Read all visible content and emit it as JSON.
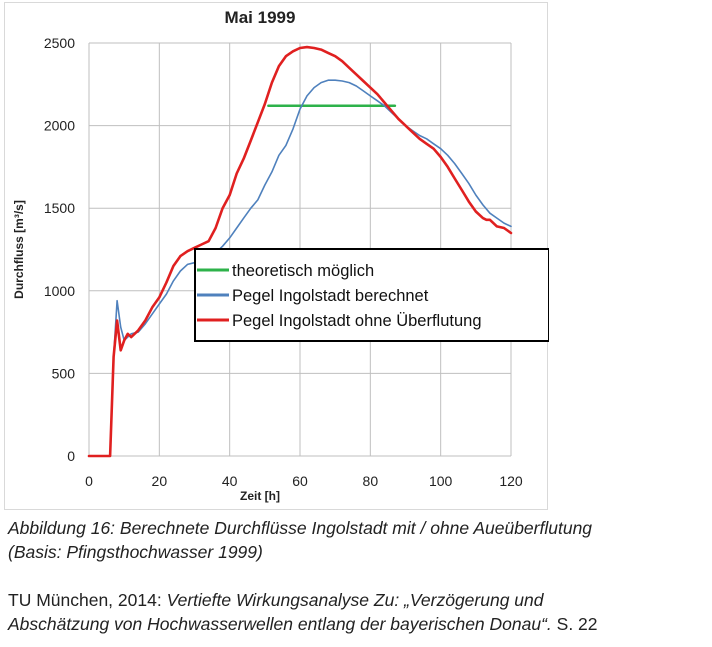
{
  "chart_data": {
    "type": "line",
    "title": "Mai 1999",
    "xlabel": "Zeit [h]",
    "ylabel": "Durchfluss [m³/s]",
    "xlim": [
      0,
      120
    ],
    "ylim": [
      0,
      2500
    ],
    "xticks": [
      0,
      20,
      40,
      60,
      80,
      100,
      120
    ],
    "yticks": [
      0,
      500,
      1000,
      1500,
      2000,
      2500
    ],
    "grid": true,
    "legend_position": "center-right",
    "series": [
      {
        "name": "theoretisch möglich",
        "color": "#2db24a",
        "x": [
          51,
          87
        ],
        "y": [
          2120,
          2120
        ]
      },
      {
        "name": "Pegel Ingolstadt berechnet",
        "color": "#4f81bd",
        "x": [
          0,
          6,
          7,
          8,
          9,
          10,
          12,
          14,
          16,
          18,
          20,
          22,
          24,
          26,
          28,
          30,
          32,
          34,
          36,
          38,
          40,
          42,
          44,
          46,
          48,
          50,
          52,
          54,
          56,
          58,
          60,
          62,
          64,
          66,
          68,
          70,
          72,
          74,
          76,
          78,
          80,
          82,
          84,
          86,
          88,
          90,
          92,
          94,
          96,
          98,
          100,
          102,
          104,
          106,
          108,
          110,
          112,
          114,
          116,
          118,
          120
        ],
        "y": [
          0,
          0,
          600,
          940,
          780,
          700,
          740,
          750,
          800,
          860,
          920,
          980,
          1060,
          1120,
          1160,
          1170,
          1180,
          1200,
          1230,
          1270,
          1320,
          1380,
          1440,
          1500,
          1550,
          1640,
          1720,
          1820,
          1880,
          1980,
          2100,
          2180,
          2230,
          2260,
          2275,
          2275,
          2270,
          2260,
          2240,
          2210,
          2180,
          2150,
          2120,
          2080,
          2040,
          2000,
          1970,
          1940,
          1920,
          1890,
          1860,
          1820,
          1770,
          1710,
          1650,
          1580,
          1520,
          1470,
          1440,
          1410,
          1390
        ]
      },
      {
        "name": "Pegel Ingolstadt ohne Überflutung",
        "color": "#e02020",
        "x": [
          0,
          6,
          7,
          8,
          9,
          10,
          11,
          12,
          14,
          16,
          18,
          20,
          22,
          24,
          26,
          28,
          30,
          32,
          34,
          36,
          38,
          40,
          42,
          44,
          46,
          48,
          50,
          52,
          54,
          56,
          58,
          60,
          62,
          64,
          66,
          68,
          70,
          72,
          74,
          76,
          78,
          80,
          82,
          84,
          86,
          88,
          90,
          92,
          94,
          96,
          98,
          100,
          102,
          104,
          106,
          108,
          110,
          112,
          113,
          114,
          116,
          118,
          120
        ],
        "y": [
          0,
          0,
          600,
          820,
          640,
          700,
          740,
          720,
          760,
          820,
          900,
          960,
          1050,
          1150,
          1210,
          1240,
          1260,
          1280,
          1300,
          1380,
          1500,
          1580,
          1710,
          1800,
          1910,
          2020,
          2130,
          2260,
          2360,
          2420,
          2450,
          2470,
          2475,
          2470,
          2460,
          2440,
          2420,
          2390,
          2350,
          2310,
          2270,
          2230,
          2190,
          2140,
          2090,
          2040,
          2000,
          1960,
          1920,
          1890,
          1860,
          1810,
          1750,
          1680,
          1610,
          1540,
          1480,
          1440,
          1430,
          1430,
          1390,
          1380,
          1350
        ]
      }
    ]
  },
  "captions": {
    "figure_line1": "Abbildung 16: Berechnete Durchflüsse Ingolstadt mit / ohne Aueüberflutung",
    "figure_line2": "(Basis: Pfingsthochwasser 1999)",
    "source_prefix": "TU München, 2014: ",
    "source_title_line1": "Vertiefte Wirkungsanalyse Zu: „Verzögerung und",
    "source_title_line2": "Abschätzung von Hochwasserwellen entlang der bayerischen Donau“.",
    "source_page": " S. 22"
  }
}
